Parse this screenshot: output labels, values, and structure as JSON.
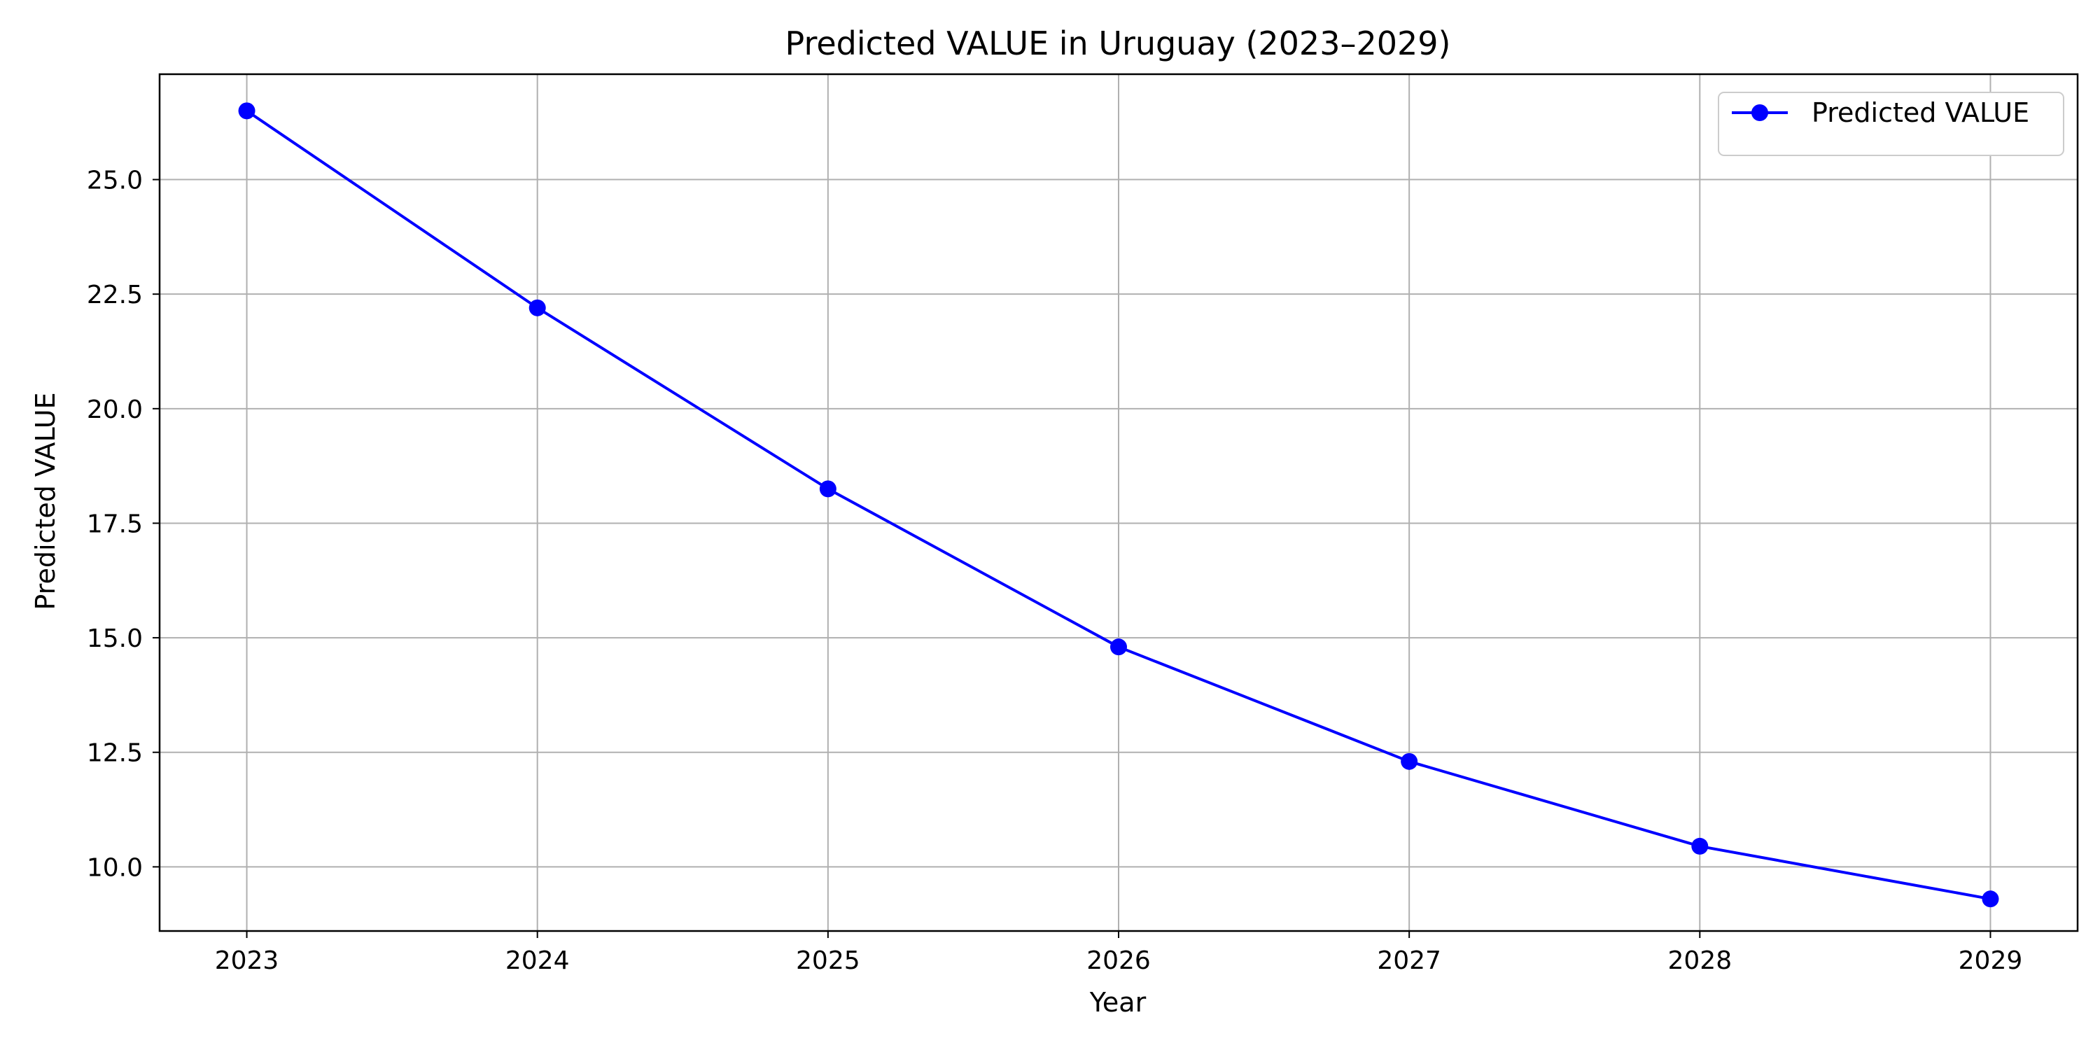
{
  "chart_data": {
    "type": "line",
    "title": "Predicted VALUE in Uruguay (2023–2029)",
    "xlabel": "Year",
    "ylabel": "Predicted VALUE",
    "x": [
      2023,
      2024,
      2025,
      2026,
      2027,
      2028,
      2029
    ],
    "x_tick_labels": [
      "2023",
      "2024",
      "2025",
      "2026",
      "2027",
      "2028",
      "2029"
    ],
    "y_ticks": [
      10.0,
      12.5,
      15.0,
      17.5,
      20.0,
      22.5,
      25.0
    ],
    "y_tick_labels": [
      "10.0",
      "12.5",
      "15.0",
      "17.5",
      "20.0",
      "22.5",
      "25.0"
    ],
    "xlim": [
      2022.7,
      2029.3
    ],
    "ylim": [
      8.6,
      27.3
    ],
    "grid": true,
    "legend_position": "top-right",
    "series": [
      {
        "name": "Predicted VALUE",
        "color": "#0000ff",
        "marker": "circle",
        "values": [
          26.5,
          22.2,
          18.25,
          14.8,
          12.3,
          10.45,
          9.3
        ]
      }
    ]
  }
}
